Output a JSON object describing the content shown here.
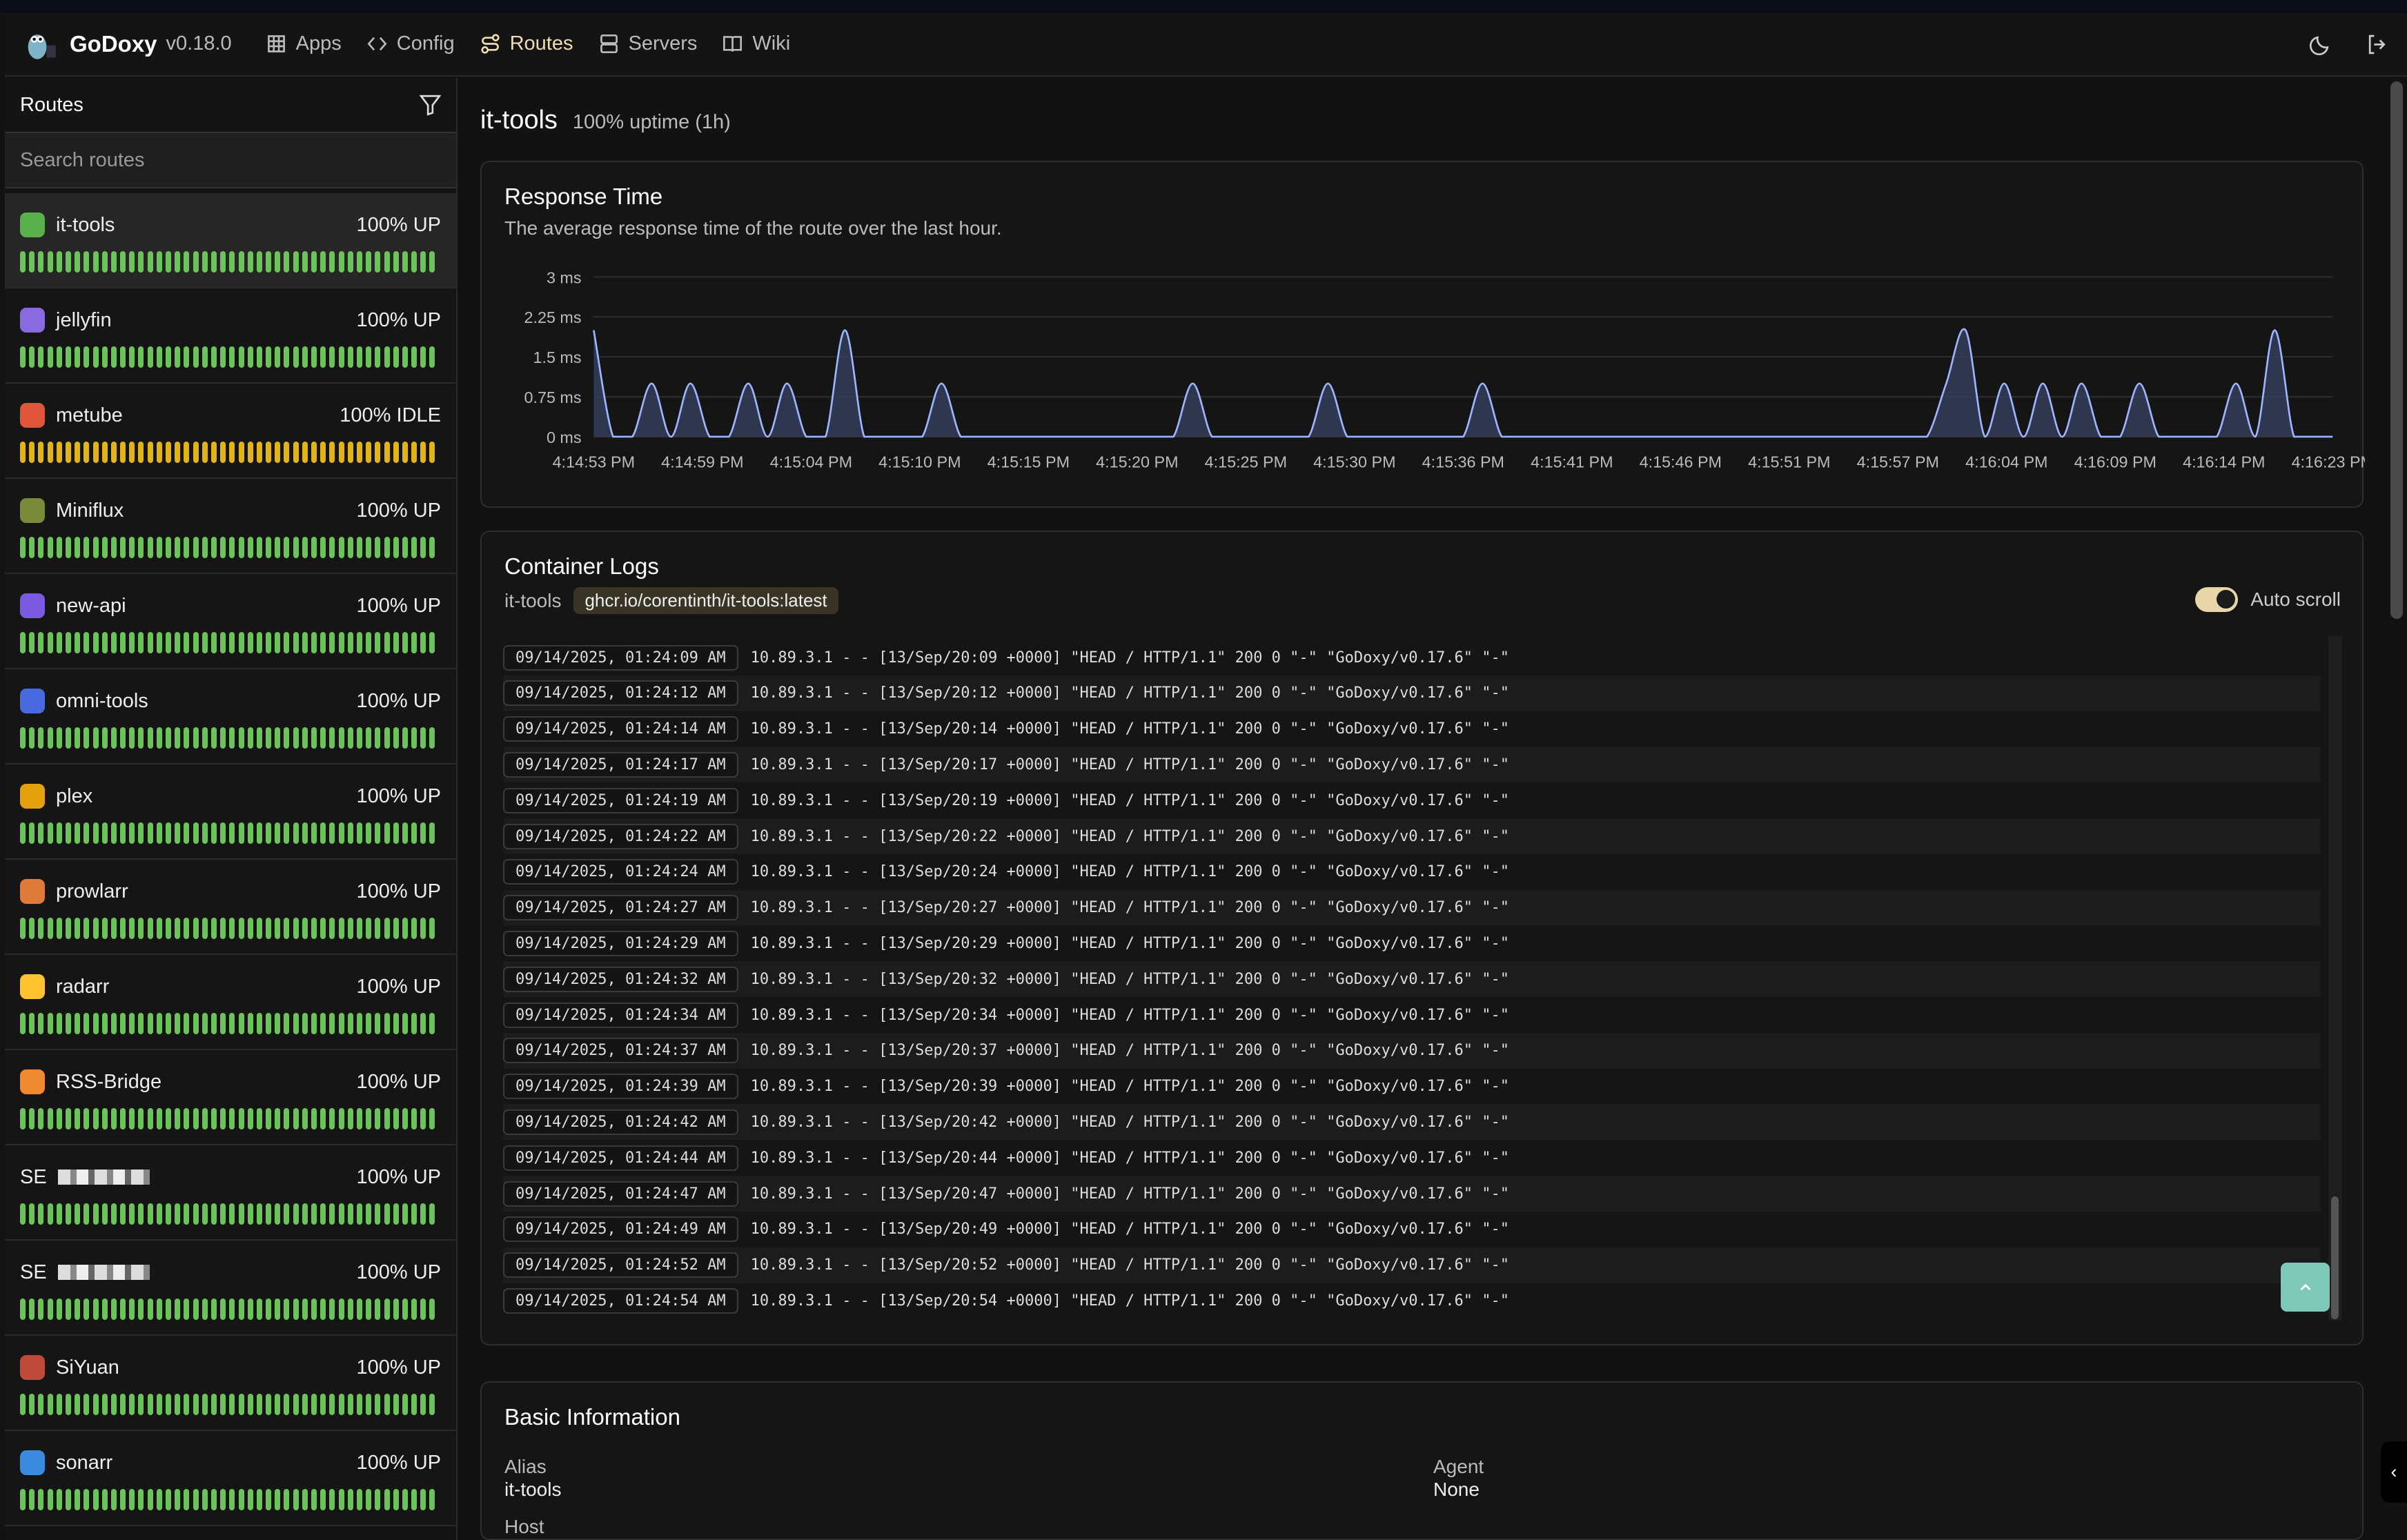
{
  "header": {
    "brand": "GoDoxy",
    "version": "v0.18.0",
    "nav": [
      {
        "label": "Apps",
        "icon": "grid-icon"
      },
      {
        "label": "Config",
        "icon": "code-icon"
      },
      {
        "label": "Routes",
        "icon": "route-icon",
        "active": true
      },
      {
        "label": "Servers",
        "icon": "server-icon"
      },
      {
        "label": "Wiki",
        "icon": "book-icon"
      }
    ]
  },
  "sidebar": {
    "title": "Routes",
    "search_placeholder": "Search routes",
    "routes": [
      {
        "name": "it-tools",
        "status": "100% UP",
        "color": "#5ab04a",
        "selected": true
      },
      {
        "name": "jellyfin",
        "status": "100% UP",
        "color": "#8a6ae0"
      },
      {
        "name": "metube",
        "status": "100% IDLE",
        "color": "#e0563a",
        "idle": true
      },
      {
        "name": "Miniflux",
        "status": "100% UP",
        "color": "#7a8a3a"
      },
      {
        "name": "new-api",
        "status": "100% UP",
        "color": "#7a5ae0"
      },
      {
        "name": "omni-tools",
        "status": "100% UP",
        "color": "#4a6ae0"
      },
      {
        "name": "plex",
        "status": "100% UP",
        "color": "#e5a00d"
      },
      {
        "name": "prowlarr",
        "status": "100% UP",
        "color": "#e07a3a"
      },
      {
        "name": "radarr",
        "status": "100% UP",
        "color": "#ffc230"
      },
      {
        "name": "RSS-Bridge",
        "status": "100% UP",
        "color": "#f08a30"
      },
      {
        "name": "SE",
        "status": "100% UP",
        "redacted": true
      },
      {
        "name": "SE",
        "status": "100% UP",
        "redacted": true
      },
      {
        "name": "SiYuan",
        "status": "100% UP",
        "color": "#c04a3a"
      },
      {
        "name": "sonarr",
        "status": "100% UP",
        "color": "#3a8ae0"
      }
    ]
  },
  "page": {
    "title": "it-tools",
    "uptime": "100% uptime (1h)"
  },
  "response": {
    "title": "Response Time",
    "subtitle": "The average response time of the route over the last hour."
  },
  "chart_data": {
    "type": "area",
    "y_ticks": [
      "3 ms",
      "2.25 ms",
      "1.5 ms",
      "0.75 ms",
      "0 ms"
    ],
    "ylim": [
      0,
      3
    ],
    "unit": "ms",
    "x_ticks": [
      "4:14:53 PM",
      "4:14:59 PM",
      "4:15:04 PM",
      "4:15:10 PM",
      "4:15:15 PM",
      "4:15:20 PM",
      "4:15:25 PM",
      "4:15:30 PM",
      "4:15:36 PM",
      "4:15:41 PM",
      "4:15:46 PM",
      "4:15:51 PM",
      "4:15:57 PM",
      "4:16:04 PM",
      "4:16:09 PM",
      "4:16:14 PM",
      "4:16:23 PM"
    ],
    "x_range": [
      "4:14:53 PM",
      "4:16:23 PM"
    ],
    "grid": true,
    "color": "#9db4ff",
    "baseline_ms": 0,
    "points": [
      {
        "t": "4:14:53 PM",
        "ms": 2.0
      },
      {
        "t": "4:14:56 PM",
        "ms": 1.0
      },
      {
        "t": "4:14:58 PM",
        "ms": 1.0
      },
      {
        "t": "4:15:01 PM",
        "ms": 1.0
      },
      {
        "t": "4:15:03 PM",
        "ms": 1.0
      },
      {
        "t": "4:15:06 PM",
        "ms": 2.0
      },
      {
        "t": "4:15:11 PM",
        "ms": 1.0
      },
      {
        "t": "4:15:24 PM",
        "ms": 1.0
      },
      {
        "t": "4:15:31 PM",
        "ms": 1.0
      },
      {
        "t": "4:15:39 PM",
        "ms": 1.0
      },
      {
        "t": "4:16:03 PM",
        "ms": 1.0
      },
      {
        "t": "4:16:04 PM",
        "ms": 2.0
      },
      {
        "t": "4:16:06 PM",
        "ms": 1.0
      },
      {
        "t": "4:16:08 PM",
        "ms": 1.0
      },
      {
        "t": "4:16:10 PM",
        "ms": 1.0
      },
      {
        "t": "4:16:13 PM",
        "ms": 1.0
      },
      {
        "t": "4:16:18 PM",
        "ms": 1.0
      },
      {
        "t": "4:16:20 PM",
        "ms": 2.0
      }
    ]
  },
  "logs": {
    "title": "Container Logs",
    "container": "it-tools",
    "image": "ghcr.io/corentinth/it-tools:latest",
    "auto_scroll_label": "Auto scroll",
    "auto_scroll": true,
    "rows": [
      [
        "09/14/2025, 01:24:09 AM",
        "10.89.3.1 - - [13/Sep/20:09 +0000] \"HEAD / HTTP/1.1\" 200 0 \"-\" \"GoDoxy/v0.17.6\" \"-\""
      ],
      [
        "09/14/2025, 01:24:12 AM",
        "10.89.3.1 - - [13/Sep/20:12 +0000] \"HEAD / HTTP/1.1\" 200 0 \"-\" \"GoDoxy/v0.17.6\" \"-\""
      ],
      [
        "09/14/2025, 01:24:14 AM",
        "10.89.3.1 - - [13/Sep/20:14 +0000] \"HEAD / HTTP/1.1\" 200 0 \"-\" \"GoDoxy/v0.17.6\" \"-\""
      ],
      [
        "09/14/2025, 01:24:17 AM",
        "10.89.3.1 - - [13/Sep/20:17 +0000] \"HEAD / HTTP/1.1\" 200 0 \"-\" \"GoDoxy/v0.17.6\" \"-\""
      ],
      [
        "09/14/2025, 01:24:19 AM",
        "10.89.3.1 - - [13/Sep/20:19 +0000] \"HEAD / HTTP/1.1\" 200 0 \"-\" \"GoDoxy/v0.17.6\" \"-\""
      ],
      [
        "09/14/2025, 01:24:22 AM",
        "10.89.3.1 - - [13/Sep/20:22 +0000] \"HEAD / HTTP/1.1\" 200 0 \"-\" \"GoDoxy/v0.17.6\" \"-\""
      ],
      [
        "09/14/2025, 01:24:24 AM",
        "10.89.3.1 - - [13/Sep/20:24 +0000] \"HEAD / HTTP/1.1\" 200 0 \"-\" \"GoDoxy/v0.17.6\" \"-\""
      ],
      [
        "09/14/2025, 01:24:27 AM",
        "10.89.3.1 - - [13/Sep/20:27 +0000] \"HEAD / HTTP/1.1\" 200 0 \"-\" \"GoDoxy/v0.17.6\" \"-\""
      ],
      [
        "09/14/2025, 01:24:29 AM",
        "10.89.3.1 - - [13/Sep/20:29 +0000] \"HEAD / HTTP/1.1\" 200 0 \"-\" \"GoDoxy/v0.17.6\" \"-\""
      ],
      [
        "09/14/2025, 01:24:32 AM",
        "10.89.3.1 - - [13/Sep/20:32 +0000] \"HEAD / HTTP/1.1\" 200 0 \"-\" \"GoDoxy/v0.17.6\" \"-\""
      ],
      [
        "09/14/2025, 01:24:34 AM",
        "10.89.3.1 - - [13/Sep/20:34 +0000] \"HEAD / HTTP/1.1\" 200 0 \"-\" \"GoDoxy/v0.17.6\" \"-\""
      ],
      [
        "09/14/2025, 01:24:37 AM",
        "10.89.3.1 - - [13/Sep/20:37 +0000] \"HEAD / HTTP/1.1\" 200 0 \"-\" \"GoDoxy/v0.17.6\" \"-\""
      ],
      [
        "09/14/2025, 01:24:39 AM",
        "10.89.3.1 - - [13/Sep/20:39 +0000] \"HEAD / HTTP/1.1\" 200 0 \"-\" \"GoDoxy/v0.17.6\" \"-\""
      ],
      [
        "09/14/2025, 01:24:42 AM",
        "10.89.3.1 - - [13/Sep/20:42 +0000] \"HEAD / HTTP/1.1\" 200 0 \"-\" \"GoDoxy/v0.17.6\" \"-\""
      ],
      [
        "09/14/2025, 01:24:44 AM",
        "10.89.3.1 - - [13/Sep/20:44 +0000] \"HEAD / HTTP/1.1\" 200 0 \"-\" \"GoDoxy/v0.17.6\" \"-\""
      ],
      [
        "09/14/2025, 01:24:47 AM",
        "10.89.3.1 - - [13/Sep/20:47 +0000] \"HEAD / HTTP/1.1\" 200 0 \"-\" \"GoDoxy/v0.17.6\" \"-\""
      ],
      [
        "09/14/2025, 01:24:49 AM",
        "10.89.3.1 - - [13/Sep/20:49 +0000] \"HEAD / HTTP/1.1\" 200 0 \"-\" \"GoDoxy/v0.17.6\" \"-\""
      ],
      [
        "09/14/2025, 01:24:52 AM",
        "10.89.3.1 - - [13/Sep/20:52 +0000] \"HEAD / HTTP/1.1\" 200 0 \"-\" \"GoDoxy/v0.17.6\" \"-\""
      ],
      [
        "09/14/2025, 01:24:54 AM",
        "10.89.3.1 - - [13/Sep/20:54 +0000] \"HEAD / HTTP/1.1\" 200 0 \"-\" \"GoDoxy/v0.17.6\" \"-\""
      ]
    ]
  },
  "basic": {
    "title": "Basic Information",
    "alias_label": "Alias",
    "alias": "it-tools",
    "agent_label": "Agent",
    "agent": "None",
    "host_label": "Host"
  },
  "colors": {
    "up": "#6cc35a",
    "idle": "#e0b418",
    "accent": "#f0dcb0",
    "scroll_top": "#7ec8b8"
  }
}
